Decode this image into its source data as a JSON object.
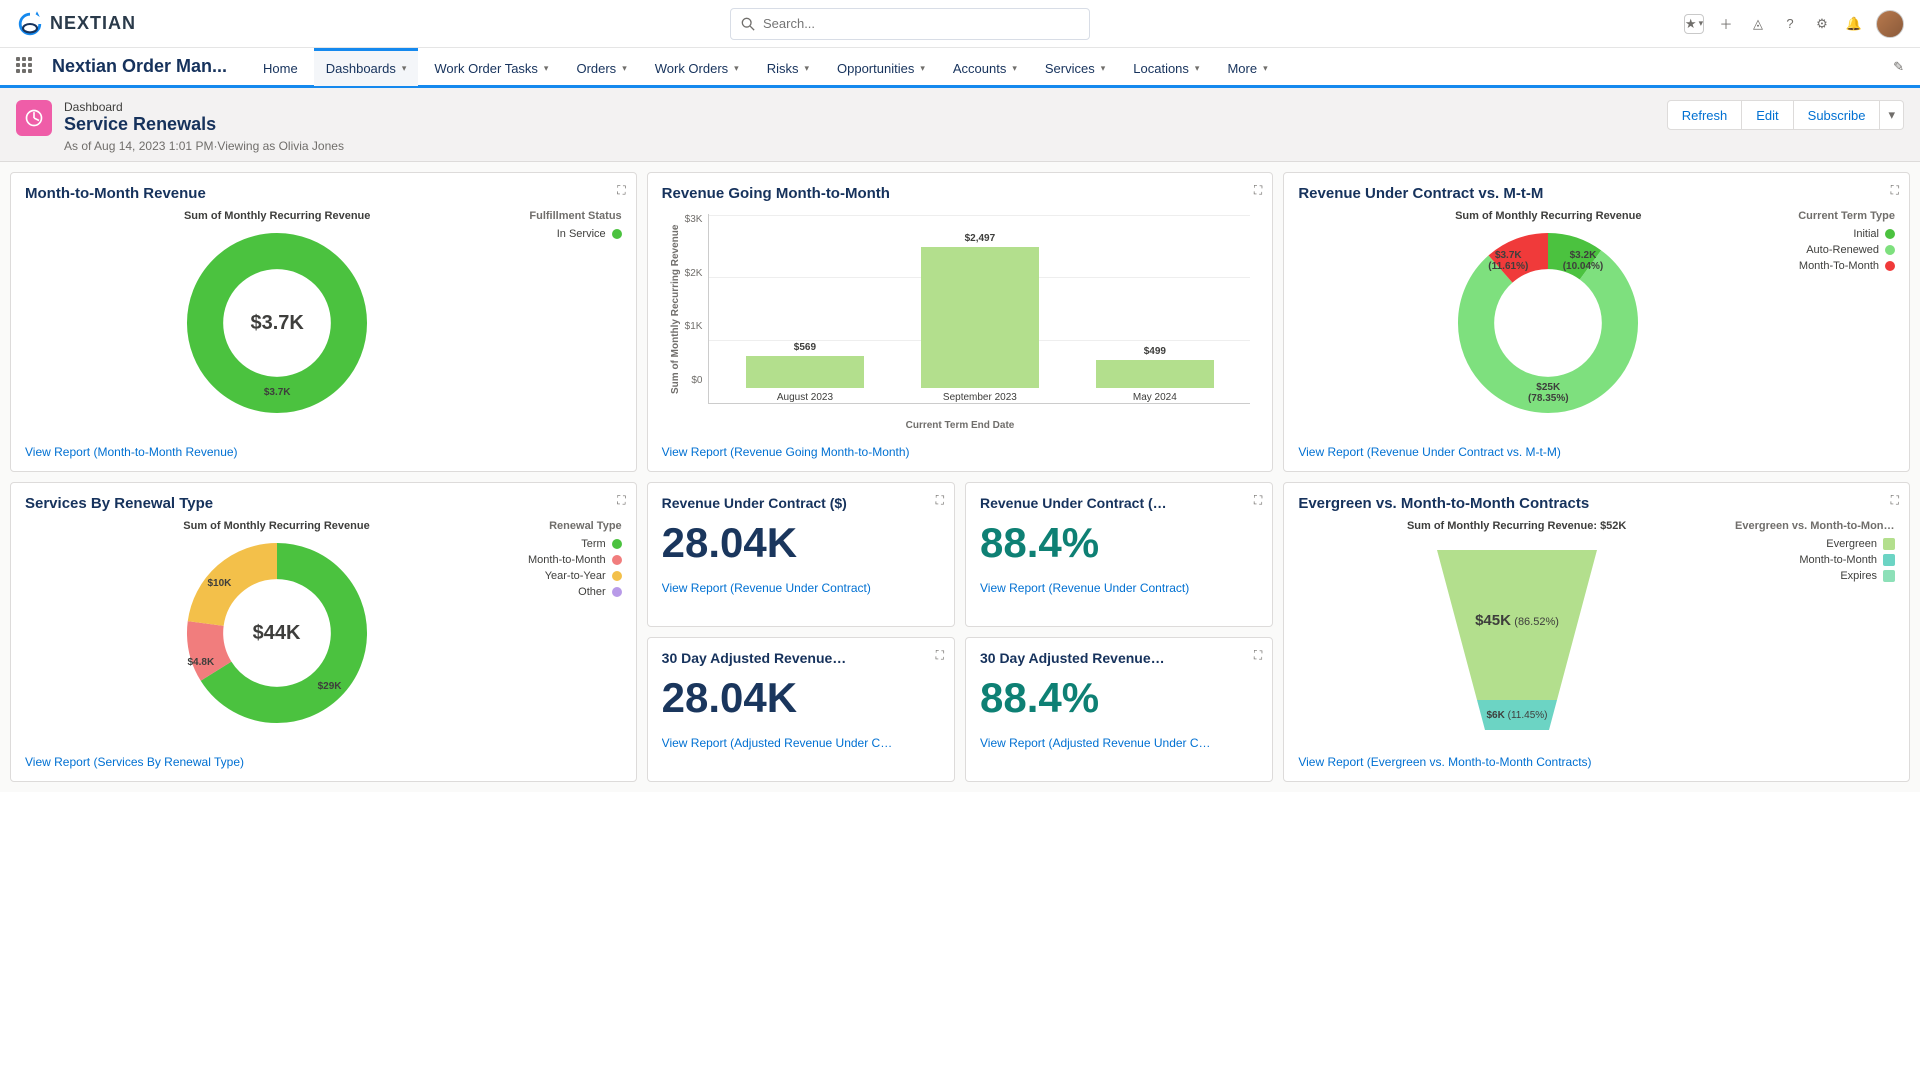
{
  "brand": "NEXTIAN",
  "search_placeholder": "Search...",
  "app_name": "Nextian Order Man...",
  "nav": [
    {
      "label": "Home",
      "active": false,
      "dd": false
    },
    {
      "label": "Dashboards",
      "active": true,
      "dd": true
    },
    {
      "label": "Work Order Tasks",
      "active": false,
      "dd": true
    },
    {
      "label": "Orders",
      "active": false,
      "dd": true
    },
    {
      "label": "Work Orders",
      "active": false,
      "dd": true
    },
    {
      "label": "Risks",
      "active": false,
      "dd": true
    },
    {
      "label": "Opportunities",
      "active": false,
      "dd": true
    },
    {
      "label": "Accounts",
      "active": false,
      "dd": true
    },
    {
      "label": "Services",
      "active": false,
      "dd": true
    },
    {
      "label": "Locations",
      "active": false,
      "dd": true
    },
    {
      "label": "More",
      "active": false,
      "dd": true
    }
  ],
  "dash_sub": "Dashboard",
  "dash_title": "Service Renewals",
  "dash_meta": "As of Aug 14, 2023 1:01 PM·Viewing as Olivia Jones",
  "actions": {
    "refresh": "Refresh",
    "edit": "Edit",
    "subscribe": "Subscribe"
  },
  "colors": {
    "green": "#4bc23f",
    "lightgreen": "#7ee07e",
    "bar": "#b3df8d",
    "red": "#f03a3a",
    "orange": "#f3c04a",
    "pink": "#f17d7d",
    "purple": "#b89ae8",
    "teal": "#6cd4c4",
    "mint": "#8de0b8",
    "link": "#0070d2",
    "kpi_blue": "#1a365d",
    "kpi_teal": "#0e8074"
  },
  "card1": {
    "title": "Month-to-Month Revenue",
    "subtitle": "Sum of Monthly Recurring Revenue",
    "center": "$3.7K",
    "slice_label": "$3.7K",
    "legend_title": "Fulfillment Status",
    "legend": [
      {
        "label": "In Service",
        "color": "#4bc23f"
      }
    ],
    "report": "View Report (Month-to-Month Revenue)",
    "slices": [
      {
        "pct": 100,
        "color": "#4bc23f"
      }
    ]
  },
  "card2": {
    "title": "Revenue Going Month-to-Month",
    "ylabel": "Sum of Monthly Recurring Revenue",
    "xlabel": "Current Term End Date",
    "ymax": 3000,
    "yticks": [
      "$3K",
      "$2K",
      "$1K",
      "$0"
    ],
    "bars": [
      {
        "cat": "August 2023",
        "val": 569,
        "label": "$569"
      },
      {
        "cat": "September 2023",
        "val": 2497,
        "label": "$2,497"
      },
      {
        "cat": "May 2024",
        "val": 499,
        "label": "$499"
      }
    ],
    "report": "View Report (Revenue Going Month-to-Month)"
  },
  "card3": {
    "title": "Revenue Under Contract vs. M-t-M",
    "subtitle": "Sum of Monthly Recurring Revenue",
    "legend_title": "Current Term Type",
    "legend": [
      {
        "label": "Initial",
        "color": "#4bc23f"
      },
      {
        "label": "Auto-Renewed",
        "color": "#7ee07e"
      },
      {
        "label": "Month-To-Month",
        "color": "#f03a3a"
      }
    ],
    "slices": [
      {
        "pct": 10.04,
        "color": "#4bc23f",
        "label": "$3.2K",
        "sub": "(10.04%)"
      },
      {
        "pct": 78.35,
        "color": "#7ee07e",
        "label": "$25K",
        "sub": "(78.35%)"
      },
      {
        "pct": 11.61,
        "color": "#f03a3a",
        "label": "$3.7K",
        "sub": "(11.61%)"
      }
    ],
    "report": "View Report (Revenue Under Contract vs. M-t-M)"
  },
  "card4": {
    "title": "Services By Renewal Type",
    "subtitle": "Sum of Monthly Recurring Revenue",
    "center": "$44K",
    "legend_title": "Renewal Type",
    "legend": [
      {
        "label": "Term",
        "color": "#4bc23f"
      },
      {
        "label": "Month-to-Month",
        "color": "#f17d7d"
      },
      {
        "label": "Year-to-Year",
        "color": "#f3c04a"
      },
      {
        "label": "Other",
        "color": "#b89ae8"
      }
    ],
    "slices": [
      {
        "pct": 66,
        "color": "#4bc23f",
        "label": "$29K"
      },
      {
        "pct": 11,
        "color": "#f17d7d",
        "label": "$4.8K"
      },
      {
        "pct": 23,
        "color": "#f3c04a",
        "label": "$10K"
      }
    ],
    "report": "View Report (Services By Renewal Type)"
  },
  "kpis": [
    {
      "title": "Revenue Under Contract ($)",
      "val": "28.04K",
      "cls": "kpi_blue",
      "report": "View Report (Revenue Under Contract)"
    },
    {
      "title": "Revenue Under Contract (…",
      "val": "88.4%",
      "cls": "kpi_teal",
      "report": "View Report (Revenue Under Contract)"
    },
    {
      "title": "30 Day Adjusted Revenue…",
      "val": "28.04K",
      "cls": "kpi_blue",
      "report": "View Report (Adjusted Revenue Under C…"
    },
    {
      "title": "30 Day Adjusted Revenue…",
      "val": "88.4%",
      "cls": "kpi_teal",
      "report": "View Report (Adjusted Revenue Under C…"
    }
  ],
  "card6": {
    "title": "Evergreen vs. Month-to-Month Contracts",
    "subtitle": "Sum of Monthly Recurring Revenue: $52K",
    "legend_title": "Evergreen vs. Month-to-Month C…",
    "legend": [
      {
        "label": "Evergreen",
        "color": "#b3df8d"
      },
      {
        "label": "Month-to-Month",
        "color": "#6cd4c4"
      },
      {
        "label": "Expires",
        "color": "#8de0b8"
      }
    ],
    "seg1": {
      "label": "$45K",
      "sub": "(86.52%)"
    },
    "seg2": {
      "label": "$6K",
      "sub": "(11.45%)"
    },
    "report": "View Report (Evergreen vs. Month-to-Month Contracts)"
  }
}
